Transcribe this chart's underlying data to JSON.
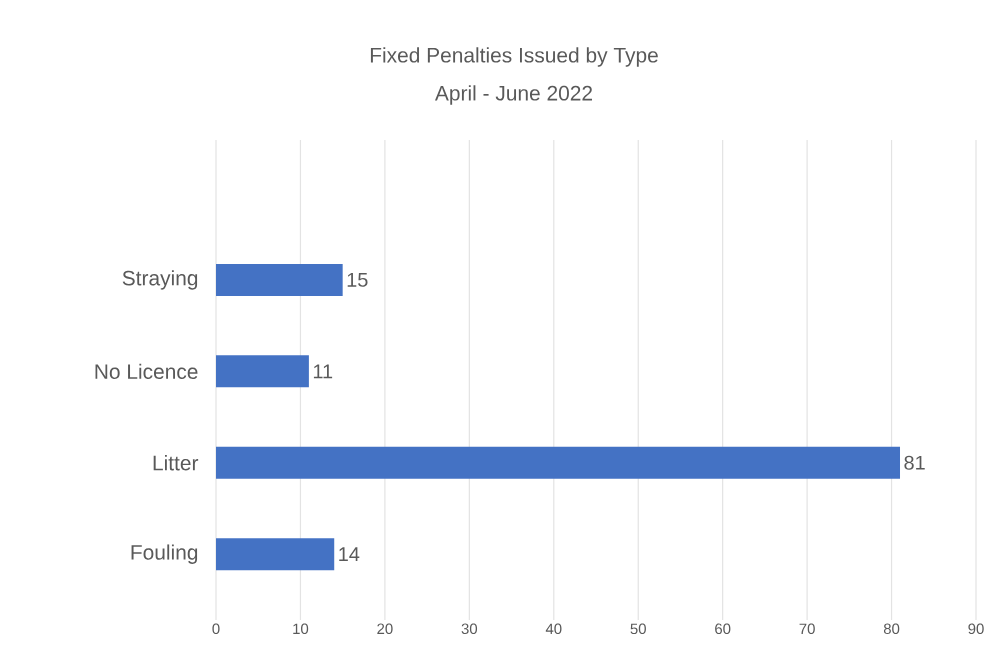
{
  "chart_data": {
    "type": "bar",
    "orientation": "horizontal",
    "title": "Fixed Penalties Issued by Type",
    "subtitle": "April - June 2022",
    "categories": [
      "Straying",
      "No Licence",
      "Litter",
      "Fouling"
    ],
    "values": [
      15,
      11,
      81,
      14
    ],
    "color": "#4472c4",
    "xlim": [
      0,
      90
    ],
    "xticks": [
      0,
      10,
      20,
      30,
      40,
      50,
      60,
      70,
      80,
      90
    ],
    "grid": "x",
    "data_labels": true
  }
}
